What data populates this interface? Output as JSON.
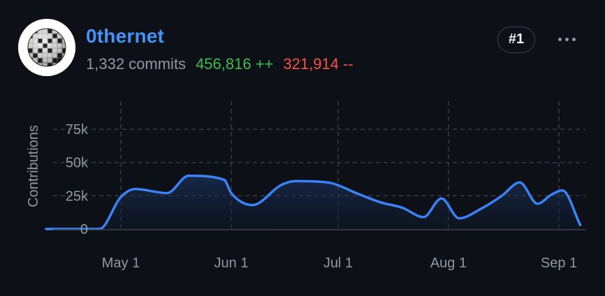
{
  "user": {
    "username": "0thernet",
    "commits_label": "1,332 commits",
    "additions_label": "456,816 ++",
    "deletions_label": "321,914 --",
    "rank_label": "#1"
  },
  "icons": {
    "avatar": "disco-ball-avatar",
    "more": "kebab-horizontal-icon"
  },
  "colors": {
    "background": "#0d1117",
    "username": "#4493f8",
    "additions": "#3fb950",
    "deletions": "#f85149",
    "line": "#3b82f6"
  },
  "chart_data": {
    "type": "area",
    "ylabel": "Contributions",
    "xlabel": "",
    "title": "",
    "ylim": [
      0,
      95000
    ],
    "y_ticks": [
      0,
      25000,
      50000,
      75000
    ],
    "y_tick_labels": [
      "0",
      "25k",
      "50k",
      "75k"
    ],
    "x_ticks": [
      "2024-05-01",
      "2024-06-01",
      "2024-07-01",
      "2024-08-01",
      "2024-09-01"
    ],
    "x_tick_labels": [
      "May 1",
      "Jun 1",
      "Jul 1",
      "Aug 1",
      "Sep 1"
    ],
    "grid": true,
    "x": [
      "2024-04-10",
      "2024-04-25",
      "2024-05-01",
      "2024-05-05",
      "2024-05-14",
      "2024-05-20",
      "2024-05-30",
      "2024-06-01",
      "2024-06-07",
      "2024-06-15",
      "2024-06-19",
      "2024-06-28",
      "2024-07-07",
      "2024-07-13",
      "2024-07-19",
      "2024-07-25",
      "2024-07-30",
      "2024-08-04",
      "2024-08-10",
      "2024-08-16",
      "2024-08-21",
      "2024-08-26",
      "2024-08-30",
      "2024-09-02",
      "2024-09-07"
    ],
    "values": [
      0,
      0,
      24000,
      30000,
      27000,
      40000,
      37000,
      27000,
      18000,
      33000,
      36000,
      35000,
      26000,
      20000,
      16000,
      9000,
      23000,
      8000,
      15000,
      25000,
      35000,
      19000,
      26000,
      29000,
      3000
    ]
  }
}
